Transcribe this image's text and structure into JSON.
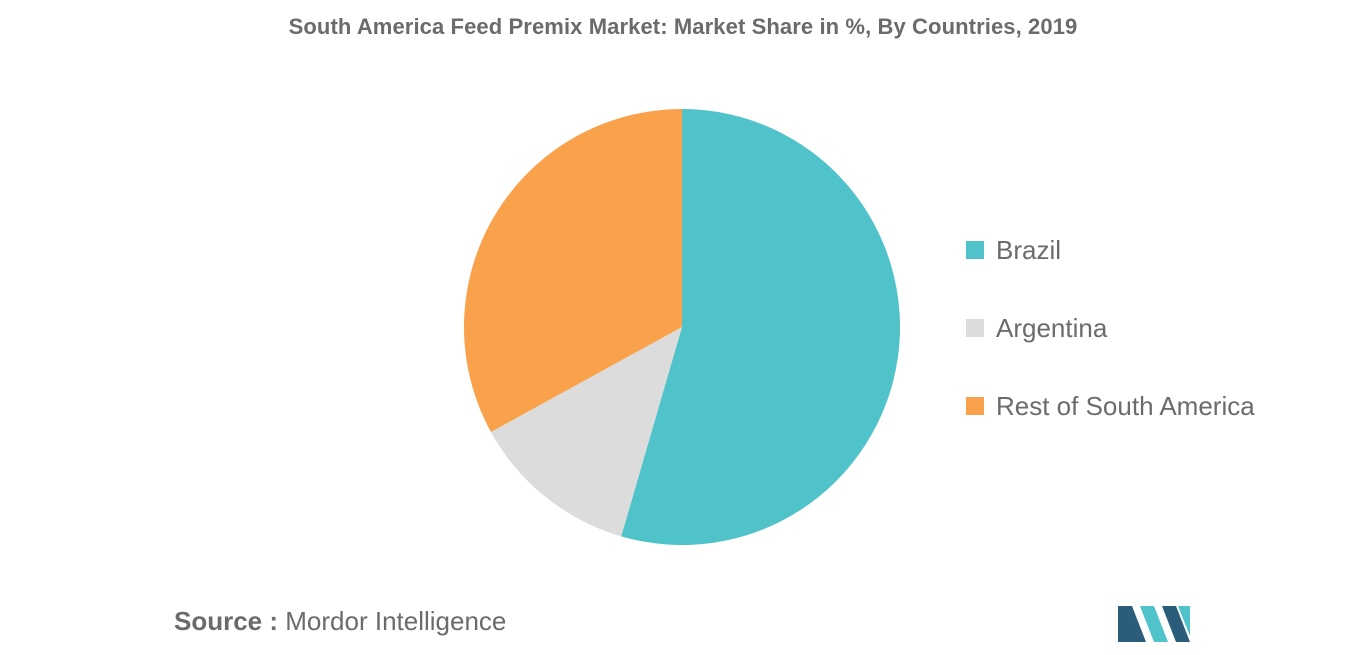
{
  "chart_data": {
    "type": "pie",
    "title": "South America Feed Premix Market: Market Share in %, By Countries, 2019",
    "categories": [
      "Brazil",
      "Argentina",
      "Rest of South America"
    ],
    "values": [
      54.5,
      12.5,
      33.0
    ],
    "colors": [
      "#4fc3c9",
      "#dcdcdc",
      "#f9a24b"
    ],
    "start_angle_deg": 0,
    "direction": "clockwise",
    "legend": "right"
  },
  "source": {
    "label": "Source :",
    "text": "Mordor Intelligence"
  },
  "logo": {
    "colors": [
      "#2b5d7b",
      "#4fc3c9"
    ]
  }
}
